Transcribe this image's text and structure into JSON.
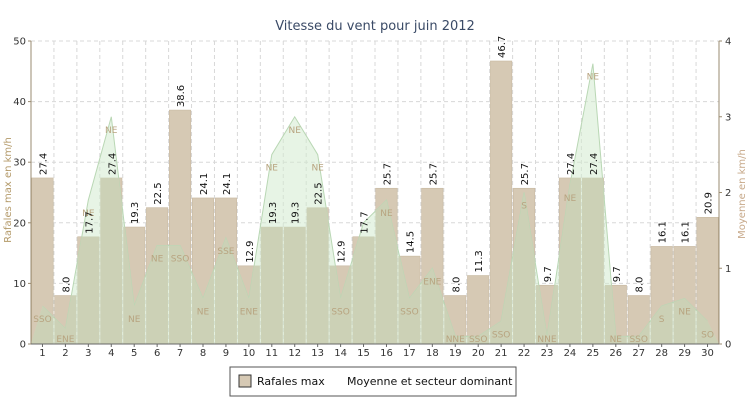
{
  "chart_data": {
    "type": "bar",
    "title": "Vitesse du vent pour juin 2012",
    "ylabel_left": "Rafales max en km/h",
    "ylabel_right": "Moyenne en km/h",
    "ylim_left": [
      0,
      50
    ],
    "yticks_left": [
      "0",
      "10",
      "20",
      "30",
      "40",
      "50"
    ],
    "ylim_right": [
      0,
      4
    ],
    "yticks_right": [
      "0",
      "1",
      "2",
      "3",
      "4"
    ],
    "categories": [
      "1",
      "2",
      "3",
      "4",
      "5",
      "6",
      "7",
      "8",
      "9",
      "10",
      "11",
      "12",
      "13",
      "14",
      "15",
      "16",
      "17",
      "18",
      "19",
      "20",
      "21",
      "22",
      "23",
      "24",
      "25",
      "26",
      "27",
      "28",
      "29",
      "30"
    ],
    "grid": true,
    "series": [
      {
        "name": "Rafales max",
        "type": "bar",
        "color": "#d6c9b4",
        "values": [
          27.4,
          8.0,
          17.7,
          27.4,
          19.3,
          22.5,
          38.6,
          24.1,
          24.1,
          12.9,
          19.3,
          19.3,
          22.5,
          12.9,
          17.7,
          25.7,
          14.5,
          25.7,
          8.0,
          11.3,
          46.7,
          25.7,
          9.7,
          27.4,
          27.4,
          9.7,
          8.0,
          16.1,
          16.1,
          20.9
        ],
        "labels": [
          "27.4",
          "8.0",
          "17.7",
          "27.4",
          "19.3",
          "22.5",
          "38.6",
          "24.1",
          "24.1",
          "12.9",
          "19.3",
          "19.3",
          "22.5",
          "12.9",
          "17.7",
          "25.7",
          "14.5",
          "25.7",
          "8.0",
          "11.3",
          "46.7",
          "25.7",
          "9.7",
          "27.4",
          "27.4",
          "9.7",
          "8.0",
          "16.1",
          "16.1",
          "20.9"
        ]
      },
      {
        "name": "Moyenne et secteur dominant",
        "type": "area",
        "color": "#cfe6cc",
        "values": [
          0.5,
          0.2,
          1.9,
          3.0,
          0.5,
          1.3,
          1.3,
          0.6,
          1.4,
          0.6,
          2.5,
          3.0,
          2.5,
          0.6,
          1.6,
          1.9,
          0.6,
          1.0,
          0.1,
          0.1,
          0.3,
          2.0,
          0.1,
          2.1,
          3.7,
          0.1,
          0.1,
          0.5,
          0.6,
          0.3
        ],
        "directions": [
          "SSO",
          "ENE",
          "NE",
          "NE",
          "NE",
          "NE",
          "SSO",
          "NE",
          "SSE",
          "ENE",
          "NE",
          "NE",
          "NE",
          "SSO",
          "",
          "NE",
          "SSO",
          "ENE",
          "NNE",
          "SSO",
          "SSO",
          "S",
          "NNE",
          "NE",
          "NE",
          "NE",
          "SSO",
          "S",
          "NE",
          "SO"
        ]
      }
    ],
    "colors": {
      "bar": "#d6c9b4",
      "bar_stroke": "#c8b9a1",
      "area_fill": "#d3ebd0",
      "area_line": "#b9d7b4",
      "overlap": "#ccd1b6",
      "grid": "#d8d8d8",
      "axis": "#9a8b70",
      "title": "#3a4a66",
      "left_axis_label": "#b49a6a",
      "right_axis_label": "#c7a98a",
      "direction_label": "#b8a480"
    },
    "legend": {
      "position": "bottom-center"
    }
  }
}
